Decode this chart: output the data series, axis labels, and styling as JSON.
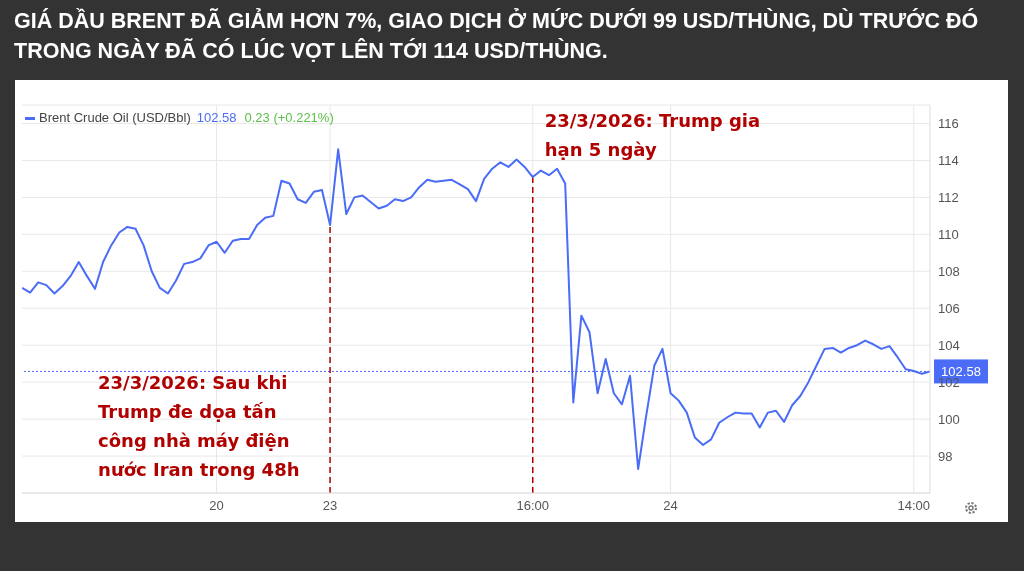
{
  "chart_data": {
    "type": "line",
    "title": "GIÁ DẦU BRENT ĐÃ GIẢM HƠN 7%, GIAO DỊCH Ở MỨC DƯỚI 99 USD/THÙNG, DÙ TRƯỚC ĐÓ TRONG NGÀY ĐÃ CÓ LÚC VỌT LÊN TỚI 114 USD/THÙNG.",
    "categories": [
      null,
      null,
      null,
      null,
      null,
      null,
      null,
      null,
      null,
      null,
      null,
      null,
      null,
      null,
      null,
      null,
      null,
      null,
      null,
      null,
      null,
      null,
      null,
      null,
      "20",
      null,
      null,
      null,
      null,
      null,
      null,
      null,
      null,
      null,
      null,
      null,
      null,
      null,
      "23",
      null,
      null,
      null,
      null,
      null,
      null,
      null,
      null,
      null,
      null,
      null,
      null,
      null,
      null,
      null,
      null,
      null,
      null,
      null,
      null,
      null,
      null,
      null,
      null,
      "16:00",
      null,
      null,
      null,
      null,
      null,
      null,
      null,
      null,
      null,
      null,
      null,
      null,
      null,
      null,
      null,
      null,
      "24",
      null,
      null,
      null,
      null,
      null,
      null,
      null,
      null,
      null,
      null,
      null,
      null,
      null,
      null,
      null,
      null,
      null,
      null,
      null,
      null,
      null,
      null,
      null,
      null,
      null,
      null,
      null,
      null,
      null,
      "14:00",
      null,
      null
    ],
    "series": [
      {
        "name": "Brent Crude Oil (USD/Bbl)",
        "color": "#4a6cf7",
        "values": [
          107.1,
          106.85,
          107.4,
          107.25,
          106.8,
          107.2,
          107.75,
          108.5,
          107.75,
          107.05,
          108.5,
          109.4,
          110.1,
          110.4,
          110.3,
          109.4,
          108.0,
          107.1,
          106.8,
          107.5,
          108.4,
          108.5,
          108.7,
          109.4,
          109.6,
          109.0,
          109.65,
          109.75,
          109.75,
          110.5,
          110.9,
          111.0,
          112.9,
          112.75,
          111.9,
          111.7,
          112.3,
          112.4,
          110.5,
          114.6,
          111.1,
          112.0,
          112.1,
          111.75,
          111.4,
          111.55,
          111.9,
          111.8,
          112.0,
          112.55,
          112.95,
          112.85,
          112.9,
          112.95,
          112.7,
          112.45,
          111.8,
          113.0,
          113.55,
          113.9,
          113.65,
          114.05,
          113.65,
          113.1,
          113.45,
          113.2,
          113.55,
          112.75,
          100.9,
          105.6,
          104.7,
          101.4,
          103.25,
          101.4,
          100.8,
          102.35,
          97.3,
          100.2,
          102.9,
          103.8,
          101.4,
          101.0,
          100.35,
          99.0,
          98.6,
          98.9,
          99.8,
          100.1,
          100.35,
          100.3,
          100.3,
          99.55,
          100.35,
          100.45,
          99.85,
          100.75,
          101.25,
          102.0,
          102.9,
          103.8,
          103.85,
          103.6,
          103.85,
          104.0,
          104.25,
          104.05,
          103.8,
          103.95,
          103.35,
          102.7,
          102.6,
          102.45,
          102.58
        ]
      }
    ],
    "ylim": [
      96,
      117
    ],
    "yticks": [
      98,
      100,
      102,
      104,
      106,
      108,
      110,
      112,
      114,
      116
    ],
    "grid": true,
    "legend": "top left",
    "marker": "none",
    "line_style": "solid",
    "ref_lines": [
      {
        "axis": "x",
        "value": "23",
        "label": "23/3/2026: Sau khi Trump đe dọa tấn công nhà máy điện nước Iran trong 48h",
        "color": "#b00000",
        "line_style": "dashed"
      },
      {
        "axis": "x",
        "value": "16:00",
        "label": "23/3/2026: Trump gia hạn 5 ngày",
        "color": "#b00000",
        "line_style": "dashed"
      },
      {
        "axis": "y",
        "value": 102.58,
        "label": "102.58",
        "color": "#4a6cf7",
        "line_style": "dotted"
      }
    ],
    "annotations": [
      "102.58",
      "0.23 (+0.221%)"
    ]
  }
}
